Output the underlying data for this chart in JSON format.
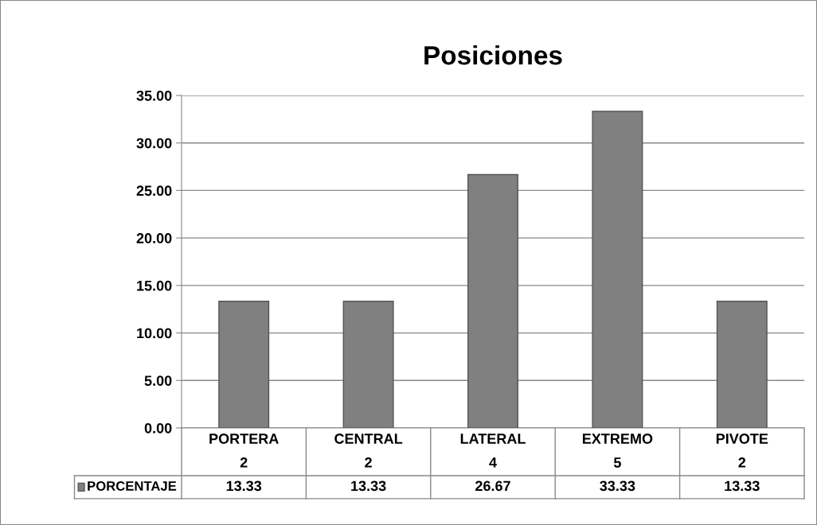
{
  "chart_data": {
    "type": "bar",
    "title": "Posiciones",
    "categories": [
      "PORTERA\n2",
      "CENTRAL\n2",
      "LATERAL\n4",
      "EXTREMO\n5",
      "PIVOTE\n2"
    ],
    "series": [
      {
        "name": "PORCENTAJE",
        "color": "#808080",
        "values": [
          13.33,
          13.33,
          26.67,
          33.33,
          13.33
        ]
      }
    ],
    "ylim": [
      0,
      35
    ],
    "yticks": [
      {
        "value": 0,
        "label": "0.00"
      },
      {
        "value": 5,
        "label": "5.00"
      },
      {
        "value": 10,
        "label": "10.00"
      },
      {
        "value": 15,
        "label": "15.00"
      },
      {
        "value": 20,
        "label": "20.00"
      },
      {
        "value": 25,
        "label": "25.00"
      },
      {
        "value": 30,
        "label": "30.00"
      },
      {
        "value": 35,
        "label": "35.00"
      }
    ],
    "grid": "y",
    "data_labels": true
  }
}
